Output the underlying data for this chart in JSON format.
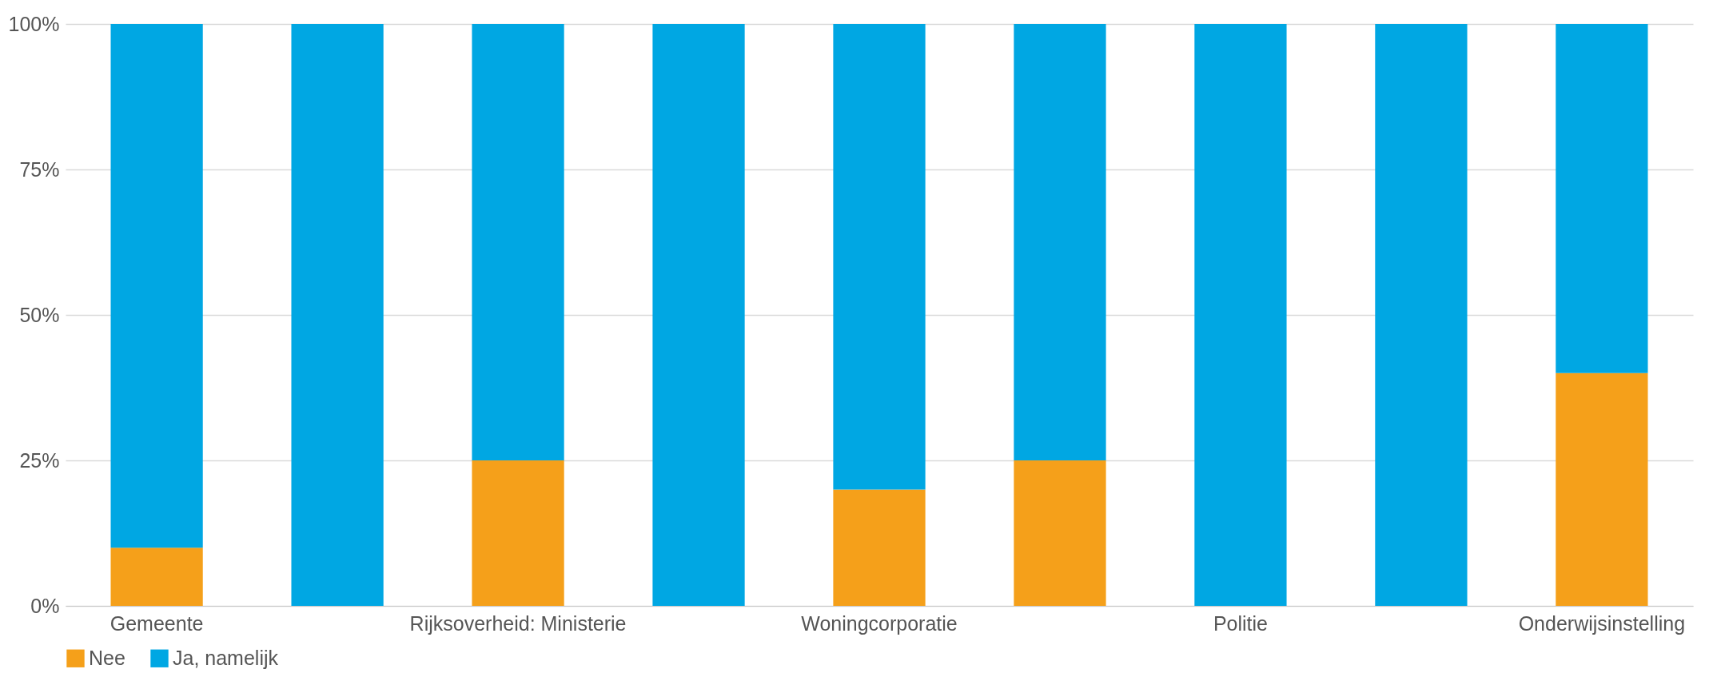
{
  "chart_data": {
    "type": "bar",
    "stacked": true,
    "categories": [
      "Gemeente",
      null,
      "Rijksoverheid: Ministerie",
      null,
      "Woningcorporatie",
      null,
      "Politie",
      null,
      "Onderwijsinstelling"
    ],
    "series": [
      {
        "name": "Nee",
        "color": "#f5a01a",
        "values": [
          10,
          0,
          25,
          0,
          20,
          25,
          0,
          0,
          40
        ]
      },
      {
        "name": "Ja, namelijk",
        "color": "#00a7e3",
        "values": [
          90,
          100,
          75,
          100,
          80,
          75,
          100,
          100,
          60
        ]
      }
    ],
    "ylim": [
      0,
      100
    ],
    "yticks": [
      {
        "value": 0,
        "label": "0%"
      },
      {
        "value": 25,
        "label": "25%"
      },
      {
        "value": 50,
        "label": "50%"
      },
      {
        "value": 75,
        "label": "75%"
      },
      {
        "value": 100,
        "label": "100%"
      }
    ],
    "grid": "y",
    "legend": "bottom"
  }
}
